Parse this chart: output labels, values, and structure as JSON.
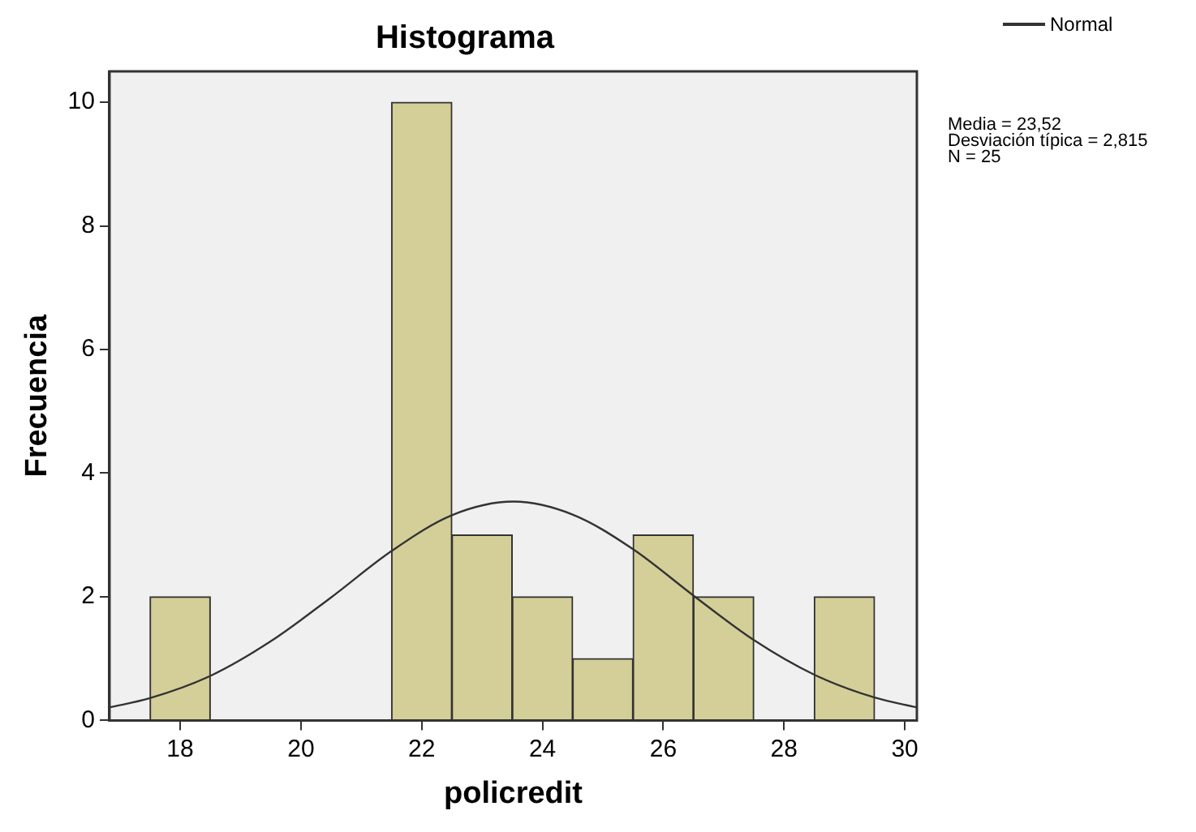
{
  "chart_data": {
    "type": "histogram",
    "title": "Histograma",
    "xlabel": "policredit",
    "ylabel": "Frecuencia",
    "bins": [
      17.5,
      18.5,
      19.5,
      20.5,
      21.5,
      22.5,
      23.5,
      24.5,
      25.5,
      26.5,
      27.5,
      28.5,
      29.5
    ],
    "values": [
      2,
      0,
      0,
      0,
      10,
      3,
      2,
      1,
      3,
      2,
      0,
      2
    ],
    "color": "#d4cf98",
    "series": [
      {
        "name": "Normal",
        "type": "line",
        "color": "#333333",
        "x": [
          16.83,
          17.5,
          18.5,
          19.5,
          20.5,
          21.5,
          22.5,
          23.52,
          24.5,
          25.5,
          26.5,
          27.5,
          28.5,
          29.5,
          30.2
        ],
        "values": [
          0.21,
          0.36,
          0.72,
          1.28,
          1.99,
          2.74,
          3.32,
          3.54,
          3.33,
          2.77,
          2.02,
          1.3,
          0.74,
          0.37,
          0.21
        ]
      }
    ],
    "xlim": [
      16.83,
      30.2
    ],
    "xticks": [
      18,
      20,
      22,
      24,
      26,
      28,
      30
    ],
    "ylim": [
      0,
      10.5
    ],
    "yticks": [
      0,
      2,
      4,
      6,
      8,
      10
    ],
    "legend": "top right",
    "annotations": [
      "Media = 23,52\nDesviación típica = 2,815\nN = 25"
    ]
  }
}
